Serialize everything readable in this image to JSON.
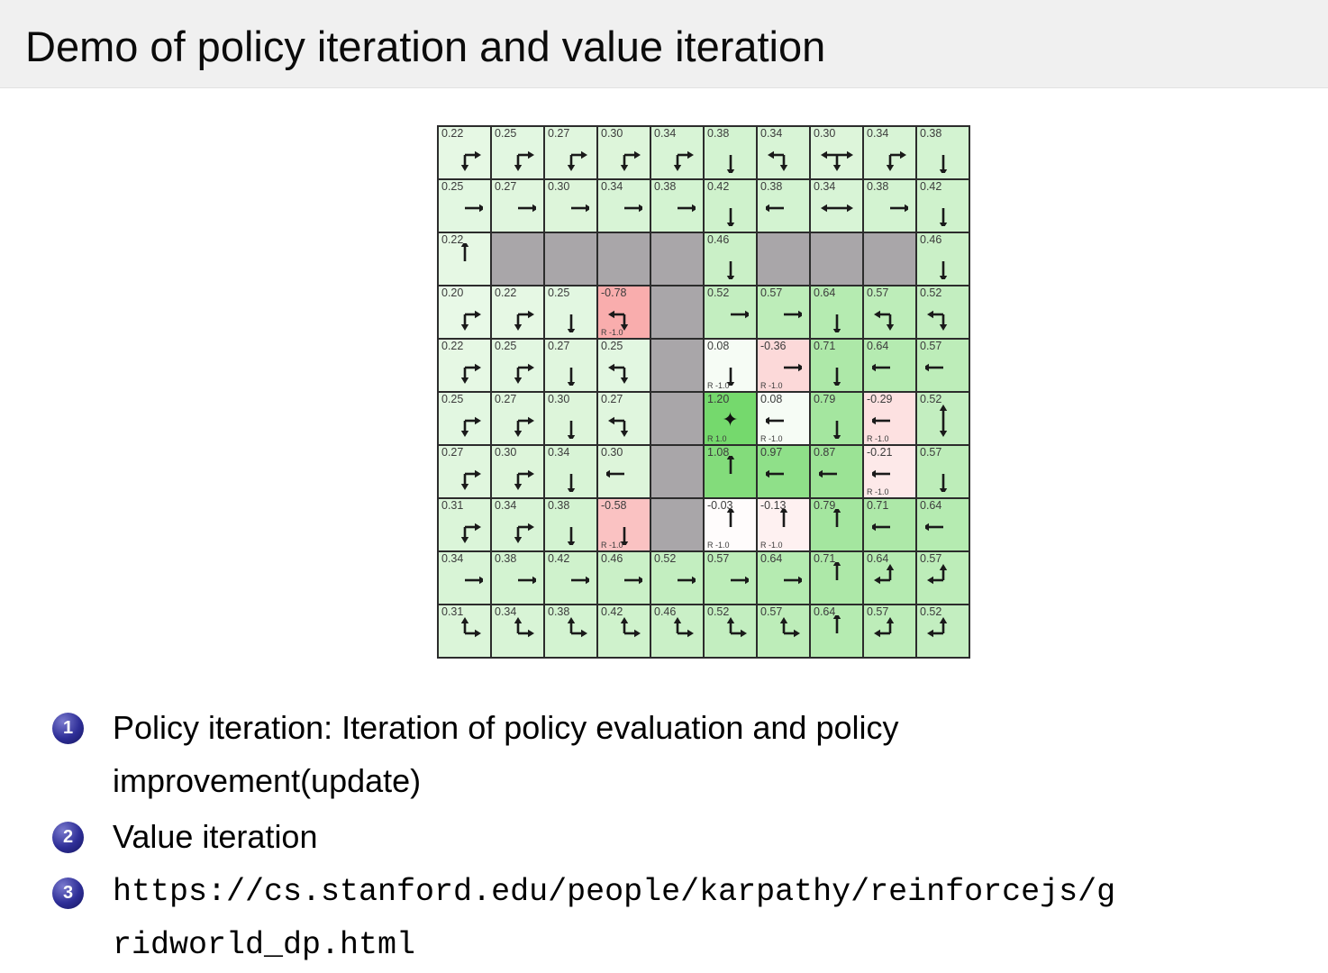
{
  "slide": {
    "title": "Demo of policy iteration and value iteration",
    "items": [
      {
        "number": "1",
        "text": "Policy iteration: Iteration of policy evaluation and policy improvement(update)",
        "mono": false
      },
      {
        "number": "2",
        "text": "Value iteration",
        "mono": false
      },
      {
        "number": "3",
        "text": "https://cs.stanford.edu/people/karpathy/reinforcejs/gridworld_dp.html",
        "mono": true
      }
    ],
    "colors": {
      "title_band_bg": "#f0f0f0",
      "body_bg": "#ffffff",
      "bullet_badge": "#2e2e97",
      "text": "#000000"
    }
  },
  "gridworld": {
    "rows": 10,
    "cols": 10,
    "colors": {
      "wall": "#a9a6a9",
      "grid_line": "#2c2c2c",
      "goal_green": "#75d96d",
      "penalty_red": "#f5a9a9",
      "arrow": "#1a1a1a"
    },
    "cells": [
      [
        {
          "v": "0.22",
          "a": [
            "down",
            "right"
          ]
        },
        {
          "v": "0.25",
          "a": [
            "down",
            "right"
          ]
        },
        {
          "v": "0.27",
          "a": [
            "down",
            "right"
          ]
        },
        {
          "v": "0.30",
          "a": [
            "down",
            "right"
          ]
        },
        {
          "v": "0.34",
          "a": [
            "down",
            "right"
          ]
        },
        {
          "v": "0.38",
          "a": [
            "down"
          ]
        },
        {
          "v": "0.34",
          "a": [
            "left",
            "down"
          ]
        },
        {
          "v": "0.30",
          "a": [
            "left",
            "right",
            "down"
          ]
        },
        {
          "v": "0.34",
          "a": [
            "down",
            "right"
          ]
        },
        {
          "v": "0.38",
          "a": [
            "down"
          ]
        }
      ],
      [
        {
          "v": "0.25",
          "a": [
            "right"
          ]
        },
        {
          "v": "0.27",
          "a": [
            "right"
          ]
        },
        {
          "v": "0.30",
          "a": [
            "right"
          ]
        },
        {
          "v": "0.34",
          "a": [
            "right"
          ]
        },
        {
          "v": "0.38",
          "a": [
            "right"
          ]
        },
        {
          "v": "0.42",
          "a": [
            "down"
          ]
        },
        {
          "v": "0.38",
          "a": [
            "left"
          ]
        },
        {
          "v": "0.34",
          "a": [
            "left",
            "right"
          ]
        },
        {
          "v": "0.38",
          "a": [
            "right"
          ]
        },
        {
          "v": "0.42",
          "a": [
            "down"
          ]
        }
      ],
      [
        {
          "v": "0.22",
          "a": [
            "up"
          ]
        },
        {
          "wall": true
        },
        {
          "wall": true
        },
        {
          "wall": true
        },
        {
          "wall": true
        },
        {
          "v": "0.46",
          "a": [
            "down"
          ]
        },
        {
          "wall": true
        },
        {
          "wall": true
        },
        {
          "wall": true
        },
        {
          "v": "0.46",
          "a": [
            "down"
          ]
        }
      ],
      [
        {
          "v": "0.20",
          "a": [
            "right",
            "down"
          ]
        },
        {
          "v": "0.22",
          "a": [
            "down",
            "right"
          ]
        },
        {
          "v": "0.25",
          "a": [
            "down"
          ]
        },
        {
          "v": "-0.78",
          "a": [
            "left",
            "down"
          ],
          "r": "R -1.0"
        },
        {
          "wall": true
        },
        {
          "v": "0.52",
          "a": [
            "right"
          ]
        },
        {
          "v": "0.57",
          "a": [
            "right"
          ]
        },
        {
          "v": "0.64",
          "a": [
            "down"
          ]
        },
        {
          "v": "0.57",
          "a": [
            "left",
            "down"
          ]
        },
        {
          "v": "0.52",
          "a": [
            "left",
            "down"
          ]
        }
      ],
      [
        {
          "v": "0.22",
          "a": [
            "down",
            "right"
          ]
        },
        {
          "v": "0.25",
          "a": [
            "down",
            "right"
          ]
        },
        {
          "v": "0.27",
          "a": [
            "down"
          ]
        },
        {
          "v": "0.25",
          "a": [
            "left",
            "down"
          ]
        },
        {
          "wall": true
        },
        {
          "v": "0.08",
          "a": [
            "down"
          ],
          "r": "R -1.0"
        },
        {
          "v": "-0.36",
          "a": [
            "right"
          ],
          "r": "R -1.0"
        },
        {
          "v": "0.71",
          "a": [
            "down"
          ]
        },
        {
          "v": "0.64",
          "a": [
            "left"
          ]
        },
        {
          "v": "0.57",
          "a": [
            "left"
          ]
        }
      ],
      [
        {
          "v": "0.25",
          "a": [
            "down",
            "right"
          ]
        },
        {
          "v": "0.27",
          "a": [
            "down",
            "right"
          ]
        },
        {
          "v": "0.30",
          "a": [
            "down"
          ]
        },
        {
          "v": "0.27",
          "a": [
            "left",
            "down"
          ]
        },
        {
          "wall": true
        },
        {
          "v": "1.20",
          "a": [],
          "goal": true,
          "r": "R 1.0"
        },
        {
          "v": "0.08",
          "a": [
            "left"
          ],
          "r": "R -1.0"
        },
        {
          "v": "0.79",
          "a": [
            "down"
          ]
        },
        {
          "v": "-0.29",
          "a": [
            "left"
          ],
          "r": "R -1.0"
        },
        {
          "v": "0.52",
          "a": [
            "up",
            "down"
          ]
        }
      ],
      [
        {
          "v": "0.27",
          "a": [
            "down",
            "right"
          ]
        },
        {
          "v": "0.30",
          "a": [
            "down",
            "right"
          ]
        },
        {
          "v": "0.34",
          "a": [
            "down"
          ]
        },
        {
          "v": "0.30",
          "a": [
            "left"
          ]
        },
        {
          "wall": true
        },
        {
          "v": "1.08",
          "a": [
            "up"
          ]
        },
        {
          "v": "0.97",
          "a": [
            "left"
          ]
        },
        {
          "v": "0.87",
          "a": [
            "left"
          ]
        },
        {
          "v": "-0.21",
          "a": [
            "left"
          ],
          "r": "R -1.0"
        },
        {
          "v": "0.57",
          "a": [
            "down"
          ]
        }
      ],
      [
        {
          "v": "0.31",
          "a": [
            "down",
            "right"
          ]
        },
        {
          "v": "0.34",
          "a": [
            "down",
            "right"
          ]
        },
        {
          "v": "0.38",
          "a": [
            "down"
          ]
        },
        {
          "v": "-0.58",
          "a": [
            "down"
          ],
          "r": "R -1.0"
        },
        {
          "wall": true
        },
        {
          "v": "-0.03",
          "a": [
            "up"
          ],
          "r": "R -1.0"
        },
        {
          "v": "-0.13",
          "a": [
            "up"
          ],
          "r": "R -1.0"
        },
        {
          "v": "0.79",
          "a": [
            "up"
          ]
        },
        {
          "v": "0.71",
          "a": [
            "left"
          ]
        },
        {
          "v": "0.64",
          "a": [
            "left"
          ]
        }
      ],
      [
        {
          "v": "0.34",
          "a": [
            "right"
          ]
        },
        {
          "v": "0.38",
          "a": [
            "right"
          ]
        },
        {
          "v": "0.42",
          "a": [
            "right"
          ]
        },
        {
          "v": "0.46",
          "a": [
            "right"
          ]
        },
        {
          "v": "0.52",
          "a": [
            "right"
          ]
        },
        {
          "v": "0.57",
          "a": [
            "right"
          ]
        },
        {
          "v": "0.64",
          "a": [
            "right"
          ]
        },
        {
          "v": "0.71",
          "a": [
            "up"
          ]
        },
        {
          "v": "0.64",
          "a": [
            "up",
            "left"
          ]
        },
        {
          "v": "0.57",
          "a": [
            "up",
            "left"
          ]
        }
      ],
      [
        {
          "v": "0.31",
          "a": [
            "up",
            "right"
          ]
        },
        {
          "v": "0.34",
          "a": [
            "up",
            "right"
          ]
        },
        {
          "v": "0.38",
          "a": [
            "up",
            "right"
          ]
        },
        {
          "v": "0.42",
          "a": [
            "up",
            "right"
          ]
        },
        {
          "v": "0.46",
          "a": [
            "up",
            "right"
          ]
        },
        {
          "v": "0.52",
          "a": [
            "up",
            "right"
          ]
        },
        {
          "v": "0.57",
          "a": [
            "up",
            "right"
          ]
        },
        {
          "v": "0.64",
          "a": [
            "up"
          ]
        },
        {
          "v": "0.57",
          "a": [
            "up",
            "left"
          ]
        },
        {
          "v": "0.52",
          "a": [
            "up",
            "left"
          ]
        }
      ]
    ]
  }
}
